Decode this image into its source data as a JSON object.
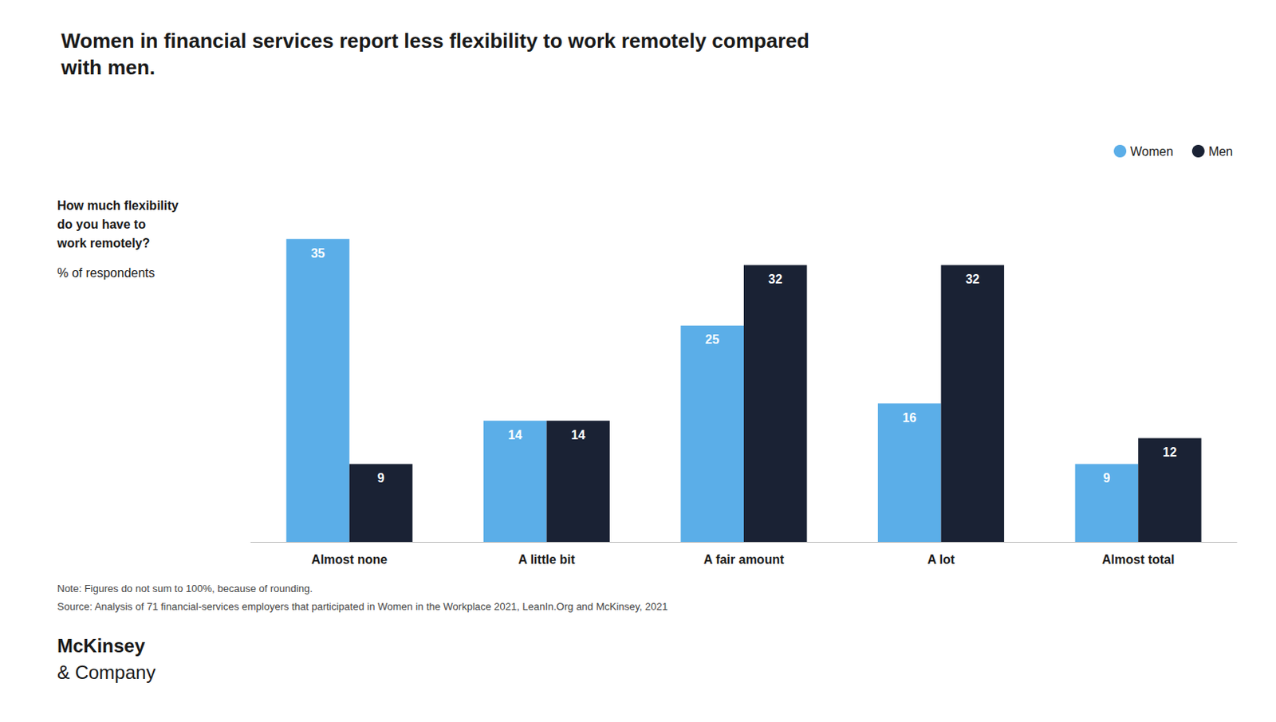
{
  "chart_data": {
    "type": "bar",
    "title": "Women in financial services report less flexibility to work remotely compared\nwith men.",
    "ylabel": "How much flexibility\ndo you have to\nwork remotely?",
    "categories": [
      "Almost none",
      "A little bit",
      "A fair amount",
      "A lot",
      "Almost total"
    ],
    "series": [
      {
        "name": "Women",
        "color": "#5BAEE8",
        "values": [
          35,
          14,
          25,
          16,
          9
        ]
      },
      {
        "name": "Men",
        "color": "#1A2234",
        "values": [
          9,
          14,
          32,
          32,
          12
        ]
      }
    ],
    "ylim": [
      0,
      40
    ],
    "grid": false,
    "legend": "upper right",
    "data_labels": true,
    "tick_labels": "x",
    "annotations": [
      "% of respondents",
      "Note: Figures do not sum to 100%, because of rounding.",
      "Source: Analysis of 71 financial-services employers that participated in Women in the Workplace 2021, LeanIn.Org and McKinsey, 2021",
      "McKinsey",
      "& Company"
    ]
  }
}
